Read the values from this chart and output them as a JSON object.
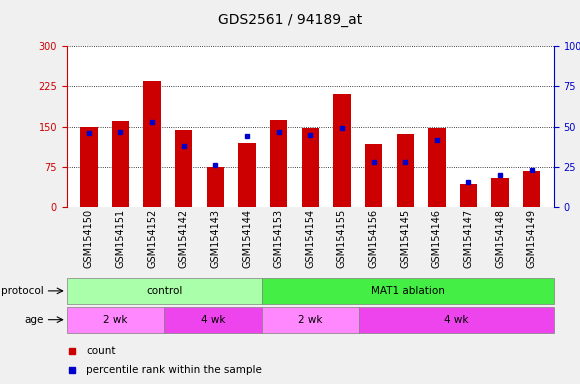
{
  "title": "GDS2561 / 94189_at",
  "samples": [
    "GSM154150",
    "GSM154151",
    "GSM154152",
    "GSM154142",
    "GSM154143",
    "GSM154144",
    "GSM154153",
    "GSM154154",
    "GSM154155",
    "GSM154156",
    "GSM154145",
    "GSM154146",
    "GSM154147",
    "GSM154148",
    "GSM154149"
  ],
  "counts": [
    150,
    160,
    235,
    143,
    75,
    120,
    163,
    148,
    210,
    118,
    137,
    148,
    43,
    55,
    68
  ],
  "percentiles": [
    46,
    47,
    53,
    38,
    26,
    44,
    47,
    45,
    49,
    28,
    28,
    42,
    16,
    20,
    23
  ],
  "ylim_left": [
    0,
    300
  ],
  "ylim_right": [
    0,
    100
  ],
  "yticks_left": [
    0,
    75,
    150,
    225,
    300
  ],
  "yticks_right": [
    0,
    25,
    50,
    75,
    100
  ],
  "bar_color": "#cc0000",
  "marker_color": "#0000cc",
  "plot_bg": "#ffffff",
  "fig_bg": "#f0f0f0",
  "left_label_color": "#cc0000",
  "right_label_color": "#0000cc",
  "title_fontsize": 10,
  "tick_fontsize": 7,
  "bar_width": 0.55,
  "protocol_groups": [
    {
      "label": "control",
      "start": 0,
      "end": 6,
      "color": "#aaffaa"
    },
    {
      "label": "MAT1 ablation",
      "start": 6,
      "end": 15,
      "color": "#44ee44"
    }
  ],
  "age_groups": [
    {
      "label": "2 wk",
      "start": 0,
      "end": 3,
      "color": "#ff88ff"
    },
    {
      "label": "4 wk",
      "start": 3,
      "end": 6,
      "color": "#ee44ee"
    },
    {
      "label": "2 wk",
      "start": 6,
      "end": 9,
      "color": "#ff88ff"
    },
    {
      "label": "4 wk",
      "start": 9,
      "end": 15,
      "color": "#ee44ee"
    }
  ]
}
